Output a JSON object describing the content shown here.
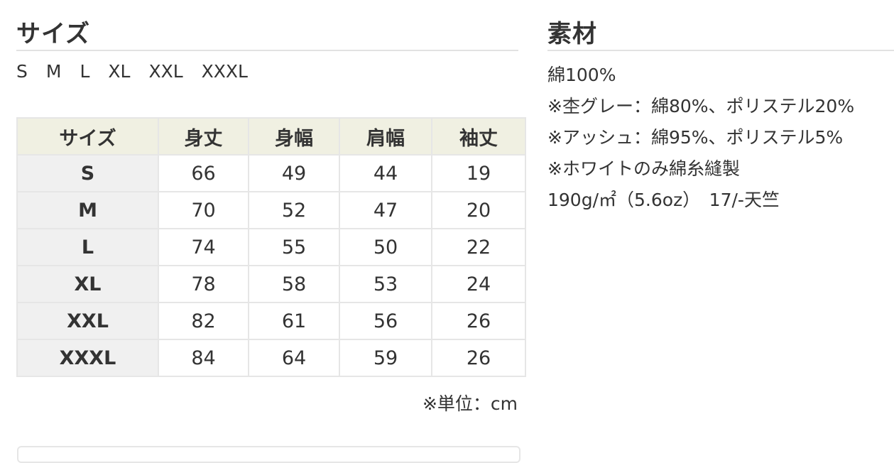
{
  "size_section": {
    "title": "サイズ",
    "sizes": [
      "S",
      "M",
      "L",
      "XL",
      "XXL",
      "XXXL"
    ],
    "table": {
      "headers": [
        "サイズ",
        "身丈",
        "身幅",
        "肩幅",
        "袖丈"
      ],
      "rows": [
        [
          "S",
          "66",
          "49",
          "44",
          "19"
        ],
        [
          "M",
          "70",
          "52",
          "47",
          "20"
        ],
        [
          "L",
          "74",
          "55",
          "50",
          "22"
        ],
        [
          "XL",
          "78",
          "58",
          "53",
          "24"
        ],
        [
          "XXL",
          "82",
          "61",
          "56",
          "26"
        ],
        [
          "XXXL",
          "84",
          "64",
          "59",
          "26"
        ]
      ]
    },
    "unit_note": "※単位：cm"
  },
  "material_section": {
    "title": "素材",
    "lines": [
      "綿100%",
      "※杢グレー：綿80%、ポリステル20%",
      "※アッシュ：綿95%、ポリステル5%",
      "※ホワイトのみ綿糸縫製",
      "190g/㎡（5.6oz）　17/-天竺"
    ]
  },
  "colors": {
    "header_bg": "#f0f0e2",
    "size_col_bg": "#f0f0f0",
    "border": "#e6e6e6",
    "text": "#333333"
  }
}
